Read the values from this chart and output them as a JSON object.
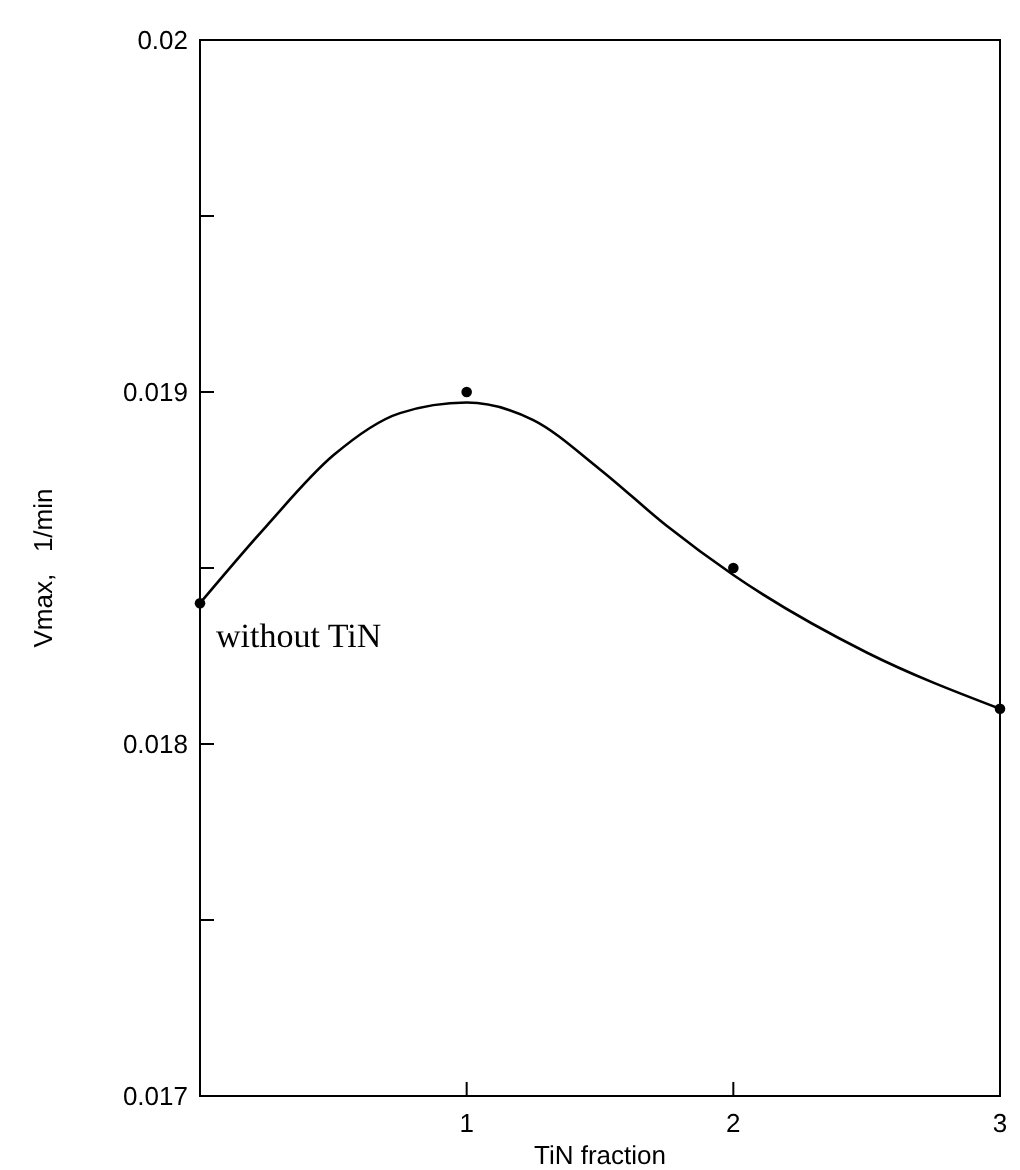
{
  "chart_data": {
    "type": "scatter",
    "xlabel": "TiN fraction",
    "ylabel": "Vmax,   1/min",
    "xlim": [
      0,
      3
    ],
    "xticks": [
      1,
      2,
      3
    ],
    "ylim": [
      0.017,
      0.02
    ],
    "yticks": [
      0.017,
      {
        "value": 0.0175,
        "label": null
      },
      0.018,
      {
        "value": 0.0185,
        "label": null
      },
      0.019,
      {
        "value": 0.0195,
        "label": null
      },
      0.02
    ],
    "series": [
      {
        "color": "#000000",
        "marker": "circle",
        "x": [
          0,
          1,
          2,
          3
        ],
        "values": [
          0.0184,
          0.019,
          0.0185,
          0.0181
        ]
      },
      {
        "type": "line",
        "color": "#000000",
        "marker": "none",
        "x": [
          0,
          0.25,
          0.5,
          0.75,
          1,
          1.25,
          1.5,
          1.75,
          2,
          2.5,
          3
        ],
        "values": [
          0.0184,
          0.01862,
          0.01882,
          0.01894,
          0.01897,
          0.01892,
          0.01878,
          0.01862,
          0.01848,
          0.01826,
          0.0181
        ]
      }
    ],
    "annotations": [
      {
        "text": "without TiN",
        "x": 0,
        "y": 0.0184
      }
    ],
    "grid": false
  }
}
